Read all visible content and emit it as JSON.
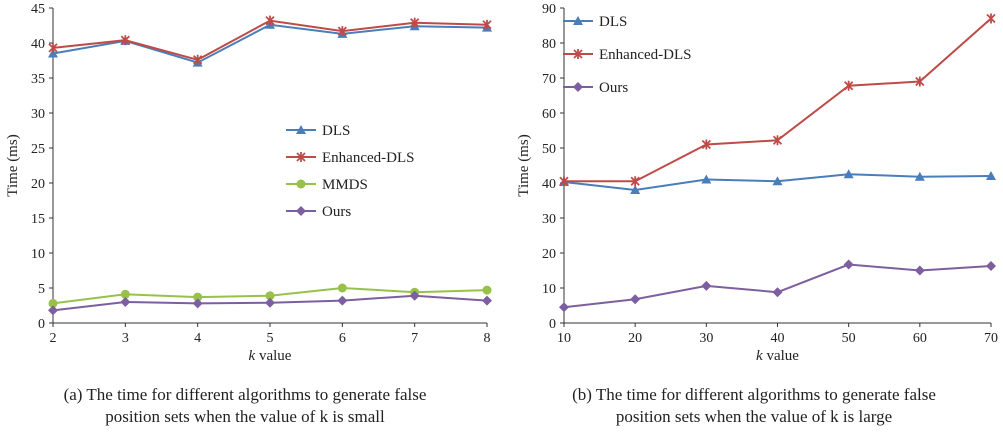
{
  "chart_data": [
    {
      "type": "line",
      "xlabel_italic": "k",
      "xlabel_rest": " value",
      "ylabel": "Time (ms)",
      "x": [
        2,
        3,
        4,
        5,
        6,
        7,
        8
      ],
      "xlim": [
        2,
        8
      ],
      "ylim": [
        0,
        45
      ],
      "yticks": [
        0,
        5,
        10,
        15,
        20,
        25,
        30,
        35,
        40,
        45
      ],
      "legend_position": "center-right",
      "series": [
        {
          "name": "DLS",
          "color": "#4a7ebb",
          "marker": "triangle",
          "values": [
            38.5,
            40.3,
            37.2,
            42.6,
            41.3,
            42.4,
            42.2
          ]
        },
        {
          "name": "Enhanced-DLS",
          "color": "#be4b48",
          "marker": "star",
          "values": [
            39.3,
            40.4,
            37.6,
            43.2,
            41.7,
            42.9,
            42.6
          ]
        },
        {
          "name": "MMDS",
          "color": "#98c14a",
          "marker": "circle",
          "values": [
            2.8,
            4.1,
            3.7,
            3.9,
            5.0,
            4.4,
            4.7
          ]
        },
        {
          "name": "Ours",
          "color": "#7d5fa0",
          "marker": "diamond",
          "values": [
            1.8,
            3.0,
            2.8,
            2.9,
            3.2,
            3.9,
            3.2
          ]
        }
      ],
      "caption_line1": "(a) The time for different algorithms to generate false",
      "caption_line2": "position sets when the value of k is small"
    },
    {
      "type": "line",
      "xlabel_italic": "k",
      "xlabel_rest": " value",
      "ylabel": "Time (ms)",
      "x": [
        10,
        20,
        30,
        40,
        50,
        60,
        70
      ],
      "xlim": [
        10,
        70
      ],
      "ylim": [
        0,
        90
      ],
      "yticks": [
        0,
        10,
        20,
        30,
        40,
        50,
        60,
        70,
        80,
        90
      ],
      "legend_position": "top-left",
      "series": [
        {
          "name": "DLS",
          "color": "#4a7ebb",
          "marker": "triangle",
          "values": [
            40.3,
            38.0,
            41.0,
            40.5,
            42.5,
            41.8,
            42.0
          ]
        },
        {
          "name": "Enhanced-DLS",
          "color": "#be4b48",
          "marker": "star",
          "values": [
            40.5,
            40.5,
            51.0,
            52.2,
            67.8,
            69.0,
            87.0
          ]
        },
        {
          "name": "Ours",
          "color": "#7d5fa0",
          "marker": "diamond",
          "values": [
            4.5,
            6.8,
            10.6,
            8.8,
            16.7,
            15.0,
            16.3
          ]
        }
      ],
      "caption_line1": "(b) The time for different algorithms to generate false",
      "caption_line2": "position sets when the value of k is large"
    }
  ]
}
